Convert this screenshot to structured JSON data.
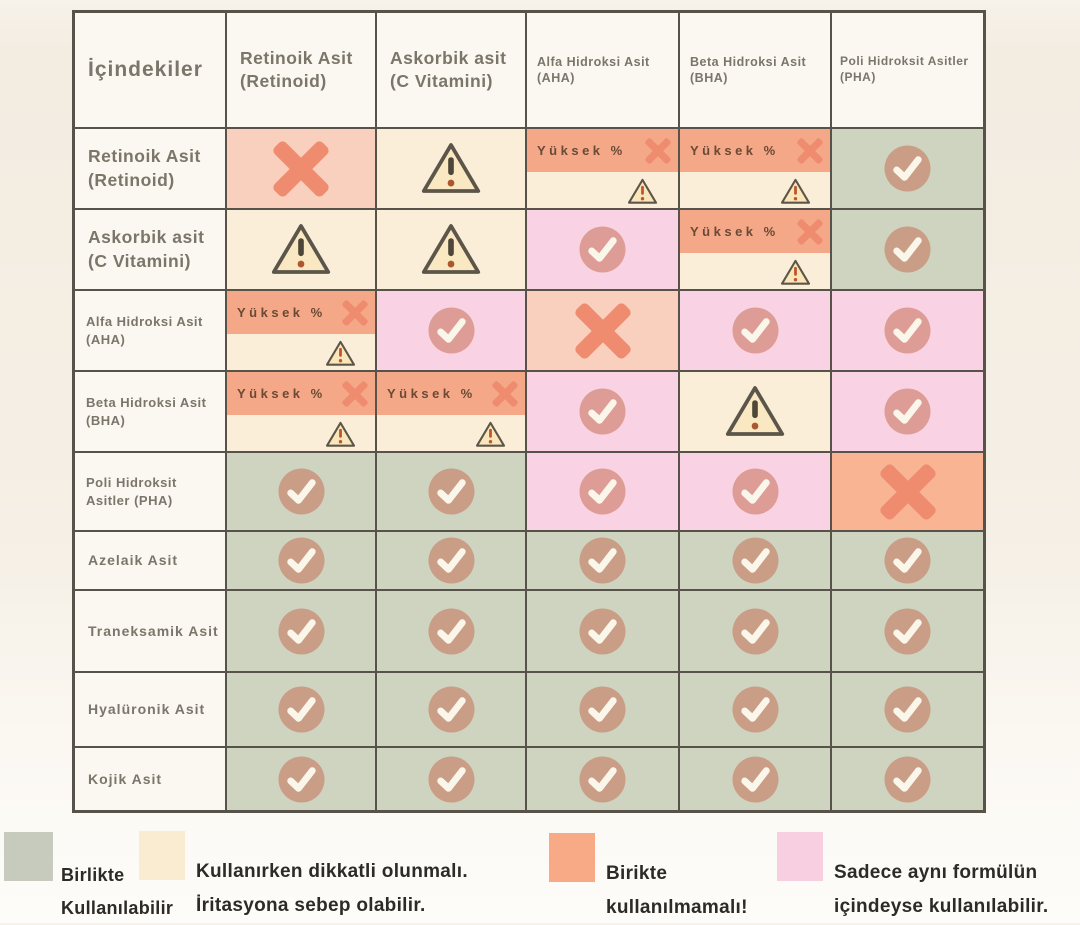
{
  "chart_data": {
    "type": "table",
    "title": "",
    "corner_label": "İçindekiler",
    "high_pct_label": "Yüksek %",
    "columns": [
      "Retinoik Asit (Retinoid)",
      "Askorbik asit (C Vitamini)",
      "Alfa Hidroksi Asit (AHA)",
      "Beta Hidroksi Asit (BHA)",
      "Poli Hidroksit Asitler (PHA)"
    ],
    "rows": [
      {
        "label": "Retinoik Asit (Retinoid)",
        "cells": [
          "no",
          "caution",
          "high-no",
          "high-no",
          "yes"
        ]
      },
      {
        "label": "Askorbik asit (C Vitamini)",
        "cells": [
          "caution",
          "caution",
          "same-formula",
          "high-no",
          "yes"
        ]
      },
      {
        "label": "Alfa Hidroksi Asit (AHA)",
        "cells": [
          "high-no",
          "same-formula",
          "no",
          "same-formula",
          "same-formula"
        ]
      },
      {
        "label": "Beta Hidroksi Asit (BHA)",
        "cells": [
          "high-no",
          "high-no",
          "same-formula",
          "caution",
          "same-formula"
        ]
      },
      {
        "label": "Poli Hidroksit Asitler (PHA)",
        "cells": [
          "yes",
          "yes",
          "same-formula",
          "same-formula",
          "no-strong"
        ]
      },
      {
        "label": "Azelaik Asit",
        "cells": [
          "yes",
          "yes",
          "yes",
          "yes",
          "yes"
        ]
      },
      {
        "label": "Traneksamik Asit",
        "cells": [
          "yes",
          "yes",
          "yes",
          "yes",
          "yes"
        ]
      },
      {
        "label": "Hyalüronik Asit",
        "cells": [
          "yes",
          "yes",
          "yes",
          "yes",
          "yes"
        ]
      },
      {
        "label": "Kojik Asit",
        "cells": [
          "yes",
          "yes",
          "yes",
          "yes",
          "yes"
        ]
      }
    ],
    "cell_value_meanings": {
      "yes": "green check — birlikte kullanılabilir",
      "same-formula": "pink check — sadece aynı formülün içindeyse kullanılabilir",
      "caution": "warning triangle — kullanırken dikkatli olunmalı",
      "no": "cross — birlikte kullanılmamalı",
      "no-strong": "cross on dark salmon — birlikte kullanılmamalı",
      "high-no": "Yüksek % cross band + small warning triangle"
    }
  },
  "legend": {
    "items": [
      {
        "swatch_color": "#c6cbbd",
        "lines": [
          "Birlikte",
          "Kullanılabilir"
        ]
      },
      {
        "swatch_color": "#faecd0",
        "lines": [
          "Kullanırken dikkatli olunmalı.",
          "İritasyona sebep olabilir."
        ]
      },
      {
        "swatch_color": "#f7aa85",
        "lines": [
          "Birikte",
          "kullanılmamalı!"
        ]
      },
      {
        "swatch_color": "#f8cfe1",
        "lines": [
          "Sadece aynı formülün",
          "içindeyse kullanılabilir."
        ]
      }
    ]
  },
  "colors": {
    "grid_line": "#57524a",
    "paper": "#faf8f1",
    "cream": "#faeed8",
    "green": "#ced4bf",
    "pink": "#f9d3e3",
    "salmon_band": "#f5a888",
    "salmon_light": "#f9cfbe",
    "salmon_dark": "#f9b593",
    "cross": "#ef8b6f",
    "check_circle": "rgba(198,112,88,0.55)",
    "check_mark": "#fbf6ea",
    "label_text": "#7b756a",
    "yuksek_text": "#6a4a35",
    "legend_text": "#2e2b27"
  }
}
